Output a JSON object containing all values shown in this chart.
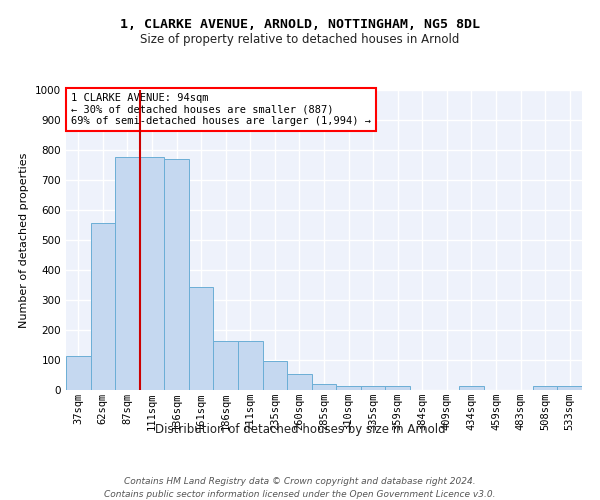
{
  "title1": "1, CLARKE AVENUE, ARNOLD, NOTTINGHAM, NG5 8DL",
  "title2": "Size of property relative to detached houses in Arnold",
  "xlabel": "Distribution of detached houses by size in Arnold",
  "ylabel": "Number of detached properties",
  "bar_color": "#c5d8f0",
  "bar_edgecolor": "#6baed6",
  "vline_color": "#cc0000",
  "vline_x_idx": 2,
  "categories": [
    "37sqm",
    "62sqm",
    "87sqm",
    "111sqm",
    "136sqm",
    "161sqm",
    "186sqm",
    "211sqm",
    "235sqm",
    "260sqm",
    "285sqm",
    "310sqm",
    "335sqm",
    "359sqm",
    "384sqm",
    "409sqm",
    "434sqm",
    "459sqm",
    "483sqm",
    "508sqm",
    "533sqm"
  ],
  "values": [
    113,
    558,
    778,
    778,
    770,
    343,
    165,
    165,
    98,
    55,
    20,
    15,
    15,
    13,
    0,
    0,
    13,
    0,
    0,
    13,
    13
  ],
  "ylim": [
    0,
    1000
  ],
  "yticks": [
    0,
    100,
    200,
    300,
    400,
    500,
    600,
    700,
    800,
    900,
    1000
  ],
  "annotation_text": "1 CLARKE AVENUE: 94sqm\n← 30% of detached houses are smaller (887)\n69% of semi-detached houses are larger (1,994) →",
  "footer1": "Contains HM Land Registry data © Crown copyright and database right 2024.",
  "footer2": "Contains public sector information licensed under the Open Government Licence v3.0.",
  "background_color": "#eef2fb",
  "grid_color": "#ffffff",
  "title1_fontsize": 9.5,
  "title2_fontsize": 8.5,
  "xlabel_fontsize": 8.5,
  "ylabel_fontsize": 8,
  "tick_fontsize": 7.5,
  "footer_fontsize": 6.5,
  "annotation_fontsize": 7.5
}
